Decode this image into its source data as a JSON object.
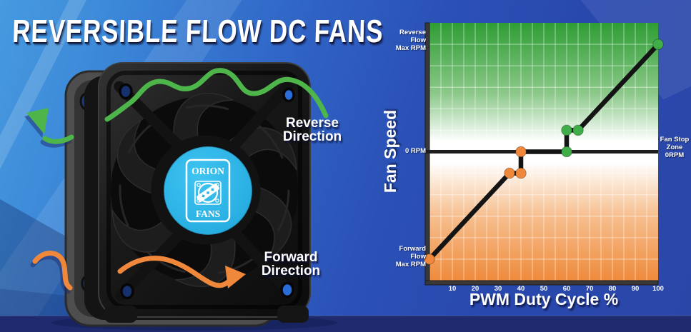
{
  "title": "REVERSIBLE FLOW DC FANS",
  "fan": {
    "logo_line1": "ORION",
    "logo_line2": "FANS",
    "reverse_label": "Reverse\nDirection",
    "forward_label": "Forward\nDirection",
    "colors": {
      "hub": "#29b5e8",
      "reverse_arrow": "#4db54a",
      "forward_arrow": "#f0883c",
      "frame": "#161616"
    }
  },
  "chart_data": {
    "type": "line",
    "xlabel": "PWM Duty Cycle %",
    "ylabel": "Fan Speed",
    "xlim": [
      0,
      100
    ],
    "ylim": [
      -120,
      120
    ],
    "x_ticks": [
      10,
      20,
      30,
      40,
      50,
      60,
      70,
      80,
      90,
      100
    ],
    "grid": true,
    "grid_x_step": 5,
    "grid_y_step": 20,
    "y_axis_labels": {
      "top": "Reverse\nFlow\nMax RPM",
      "zero": "0 RPM",
      "bottom": "Forward\nFlow\nMax RPM"
    },
    "right_label": "Fan Stop\nZone\n0RPM",
    "y_units": "percent_of_max_rpm (+100 = Reverse Flow Max RPM, -100 = Forward Flow Max RPM)",
    "series": [
      {
        "name": "fan_speed_vs_pwm_duty",
        "color": "#141414",
        "points": [
          [
            0,
            -100
          ],
          [
            35,
            -20
          ],
          [
            40,
            -20
          ],
          [
            40,
            0
          ],
          [
            60,
            0
          ],
          [
            60,
            20
          ],
          [
            65,
            20
          ],
          [
            100,
            100
          ]
        ]
      }
    ],
    "markers": [
      {
        "x": 0,
        "y": -100,
        "state": "forward"
      },
      {
        "x": 35,
        "y": -20,
        "state": "forward"
      },
      {
        "x": 40,
        "y": -20,
        "state": "forward"
      },
      {
        "x": 40,
        "y": 0,
        "state": "forward"
      },
      {
        "x": 60,
        "y": 0,
        "state": "reverse"
      },
      {
        "x": 60,
        "y": 20,
        "state": "reverse"
      },
      {
        "x": 65,
        "y": 20,
        "state": "reverse"
      },
      {
        "x": 100,
        "y": 100,
        "state": "reverse"
      }
    ],
    "marker_colors": {
      "forward": "#f0883c",
      "reverse": "#3fae49"
    },
    "zone_colors": {
      "reverse_zone_top": "#2e9d33",
      "zero_band": "#ffffff",
      "forward_zone_bottom": "#ef8a3b"
    },
    "legend": "off"
  }
}
